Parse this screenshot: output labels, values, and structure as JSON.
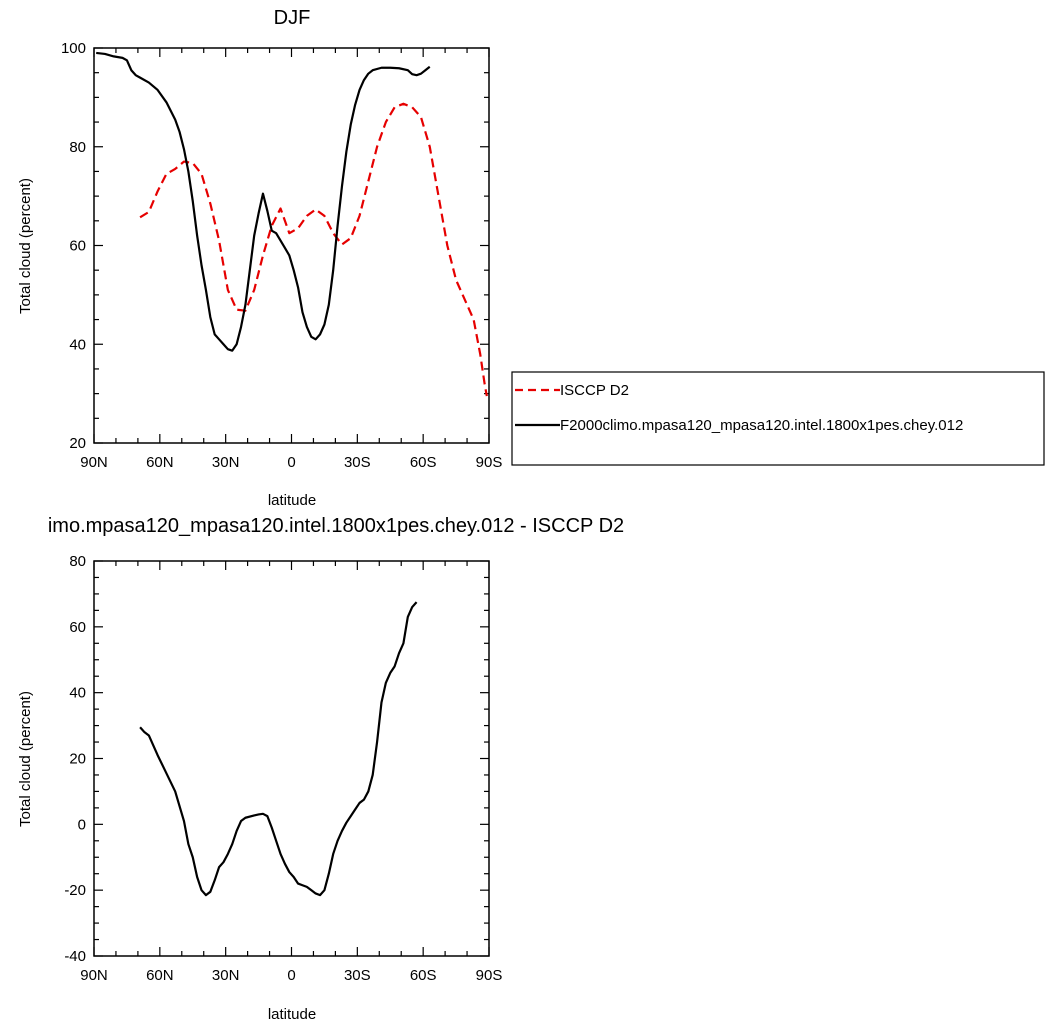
{
  "chart_data": [
    {
      "type": "line",
      "title": "DJF",
      "xlabel": "latitude",
      "ylabel": "Total cloud (percent)",
      "xlim": [
        90,
        -90
      ],
      "ylim": [
        20,
        100
      ],
      "x_ticks": [
        90,
        60,
        30,
        0,
        -30,
        -60,
        -90
      ],
      "x_tick_labels": [
        "90N",
        "60N",
        "30N",
        "0",
        "30S",
        "60S",
        "90S"
      ],
      "y_ticks": [
        20,
        40,
        60,
        80,
        100
      ],
      "y_tick_labels": [
        "20",
        "40",
        "60",
        "80",
        "100"
      ],
      "legend_position": "right",
      "series": [
        {
          "name": "ISCCP D2",
          "color": "#e60000",
          "dash": "dashed",
          "points": [
            [
              69,
              65.7
            ],
            [
              65,
              66.8
            ],
            [
              61,
              71
            ],
            [
              57,
              74.5
            ],
            [
              53,
              75.5
            ],
            [
              49,
              77
            ],
            [
              45,
              76.7
            ],
            [
              41,
              74.5
            ],
            [
              37,
              68.5
            ],
            [
              33,
              61
            ],
            [
              29,
              51
            ],
            [
              25,
              47
            ],
            [
              21,
              46.8
            ],
            [
              17,
              51
            ],
            [
              13,
              58
            ],
            [
              9,
              64
            ],
            [
              5,
              67.5
            ],
            [
              1,
              62.5
            ],
            [
              -3,
              63.5
            ],
            [
              -7,
              66
            ],
            [
              -11,
              67.3
            ],
            [
              -15,
              66
            ],
            [
              -19,
              62.5
            ],
            [
              -23,
              60.2
            ],
            [
              -27,
              61.5
            ],
            [
              -31,
              66
            ],
            [
              -35,
              73
            ],
            [
              -39,
              80
            ],
            [
              -43,
              85
            ],
            [
              -47,
              88
            ],
            [
              -51,
              88.7
            ],
            [
              -55,
              88
            ],
            [
              -59,
              86
            ],
            [
              -63,
              80
            ],
            [
              -67,
              70
            ],
            [
              -71,
              60
            ],
            [
              -75,
              53
            ],
            [
              -79,
              49
            ],
            [
              -83,
              45
            ],
            [
              -86,
              38
            ],
            [
              -88,
              32
            ],
            [
              -89,
              29.5
            ]
          ]
        },
        {
          "name": "F2000climo.mpasa120_mpasa120.intel.1800x1pes.chey.012",
          "color": "#000000",
          "dash": "solid",
          "points": [
            [
              89,
              99
            ],
            [
              85,
              98.8
            ],
            [
              81,
              98.3
            ],
            [
              77,
              98
            ],
            [
              75,
              97.5
            ],
            [
              73,
              95.5
            ],
            [
              71,
              94.5
            ],
            [
              69,
              94
            ],
            [
              65,
              93
            ],
            [
              61,
              91.5
            ],
            [
              57,
              89
            ],
            [
              53,
              85.5
            ],
            [
              51,
              83
            ],
            [
              49,
              79.5
            ],
            [
              47,
              75
            ],
            [
              45,
              69
            ],
            [
              43,
              62
            ],
            [
              41,
              56
            ],
            [
              39,
              51
            ],
            [
              37,
              45.5
            ],
            [
              35,
              42
            ],
            [
              33,
              41
            ],
            [
              31,
              40
            ],
            [
              29,
              39
            ],
            [
              27,
              38.7
            ],
            [
              25,
              40
            ],
            [
              23,
              43.5
            ],
            [
              21,
              48
            ],
            [
              19,
              55
            ],
            [
              17,
              62
            ],
            [
              15,
              66.5
            ],
            [
              13,
              70.5
            ],
            [
              11,
              67
            ],
            [
              9,
              63
            ],
            [
              7,
              62.5
            ],
            [
              5,
              61
            ],
            [
              3,
              59.5
            ],
            [
              1,
              58
            ],
            [
              -1,
              55
            ],
            [
              -3,
              51.5
            ],
            [
              -5,
              46.5
            ],
            [
              -7,
              43.5
            ],
            [
              -9,
              41.5
            ],
            [
              -11,
              41
            ],
            [
              -13,
              42
            ],
            [
              -15,
              44
            ],
            [
              -17,
              48
            ],
            [
              -19,
              55
            ],
            [
              -21,
              64
            ],
            [
              -23,
              72
            ],
            [
              -25,
              79
            ],
            [
              -27,
              84.5
            ],
            [
              -29,
              88.5
            ],
            [
              -31,
              91.5
            ],
            [
              -33,
              93.5
            ],
            [
              -35,
              94.8
            ],
            [
              -37,
              95.5
            ],
            [
              -41,
              96
            ],
            [
              -45,
              96
            ],
            [
              -49,
              95.9
            ],
            [
              -53,
              95.5
            ],
            [
              -55,
              94.7
            ],
            [
              -57,
              94.5
            ],
            [
              -59,
              94.8
            ],
            [
              -61,
              95.5
            ],
            [
              -63,
              96.2
            ]
          ]
        }
      ],
      "legend": {
        "entries": [
          "ISCCP D2",
          "F2000climo.mpasa120_mpasa120.intel.1800x1pes.chey.012"
        ]
      }
    },
    {
      "type": "line",
      "title": "imo.mpasa120_mpasa120.intel.1800x1pes.chey.012 - ISCCP D2",
      "xlabel": "latitude",
      "ylabel": "Total cloud (percent)",
      "xlim": [
        90,
        -90
      ],
      "ylim": [
        -40,
        80
      ],
      "x_ticks": [
        90,
        60,
        30,
        0,
        -30,
        -60,
        -90
      ],
      "x_tick_labels": [
        "90N",
        "60N",
        "30N",
        "0",
        "30S",
        "60S",
        "90S"
      ],
      "y_ticks": [
        -40,
        -20,
        0,
        20,
        40,
        60,
        80
      ],
      "y_tick_labels": [
        "-40",
        "-20",
        "0",
        "20",
        "40",
        "60",
        "80"
      ],
      "series": [
        {
          "color": "#000000",
          "dash": "solid",
          "points": [
            [
              69,
              29.5
            ],
            [
              67,
              28
            ],
            [
              65,
              27
            ],
            [
              61,
              21
            ],
            [
              57,
              15.5
            ],
            [
              53,
              10
            ],
            [
              49,
              1
            ],
            [
              47,
              -6
            ],
            [
              45,
              -10
            ],
            [
              43,
              -16
            ],
            [
              41,
              -20
            ],
            [
              39,
              -21.5
            ],
            [
              37,
              -20.5
            ],
            [
              35,
              -17
            ],
            [
              33,
              -13
            ],
            [
              31,
              -11.5
            ],
            [
              29,
              -9
            ],
            [
              27,
              -6
            ],
            [
              25,
              -2
            ],
            [
              23,
              1
            ],
            [
              21,
              2
            ],
            [
              17,
              2.7
            ],
            [
              15,
              3
            ],
            [
              13,
              3.2
            ],
            [
              11,
              2.5
            ],
            [
              9,
              -1
            ],
            [
              7,
              -5
            ],
            [
              5,
              -9
            ],
            [
              3,
              -12
            ],
            [
              1,
              -14.5
            ],
            [
              -1,
              -16
            ],
            [
              -3,
              -18
            ],
            [
              -5,
              -18.5
            ],
            [
              -7,
              -19
            ],
            [
              -9,
              -20
            ],
            [
              -11,
              -21
            ],
            [
              -13,
              -21.5
            ],
            [
              -15,
              -20
            ],
            [
              -17,
              -15
            ],
            [
              -19,
              -9
            ],
            [
              -21,
              -5
            ],
            [
              -23,
              -2
            ],
            [
              -25,
              0.5
            ],
            [
              -27,
              2.5
            ],
            [
              -29,
              4.5
            ],
            [
              -31,
              6.5
            ],
            [
              -33,
              7.5
            ],
            [
              -35,
              10
            ],
            [
              -37,
              15
            ],
            [
              -39,
              25
            ],
            [
              -41,
              37
            ],
            [
              -43,
              43
            ],
            [
              -45,
              46
            ],
            [
              -47,
              48
            ],
            [
              -49,
              52
            ],
            [
              -51,
              55
            ],
            [
              -53,
              63
            ],
            [
              -55,
              66
            ],
            [
              -57,
              67.5
            ]
          ]
        }
      ]
    }
  ]
}
